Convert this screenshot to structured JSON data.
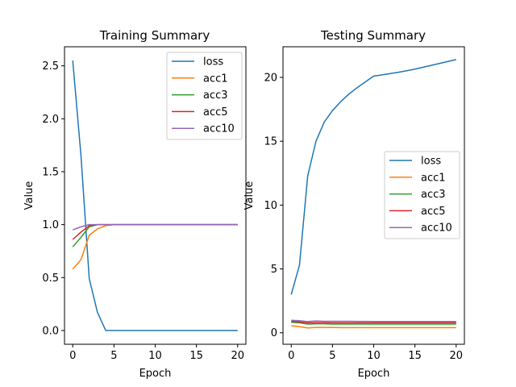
{
  "chart_data": [
    {
      "type": "line",
      "title": "Training Summary",
      "xlabel": "Epoch",
      "ylabel": "Value",
      "xlim": [
        -1,
        21
      ],
      "ylim": [
        -0.13,
        2.68
      ],
      "xticks": [
        0,
        5,
        10,
        15,
        20
      ],
      "yticks": [
        0.0,
        0.5,
        1.0,
        1.5,
        2.0,
        2.5
      ],
      "ytick_labels": [
        "0.0",
        "0.5",
        "1.0",
        "1.5",
        "2.0",
        "2.5"
      ],
      "grid": false,
      "legend_position": "top-right",
      "x": [
        0,
        1,
        2,
        3,
        4,
        5,
        6,
        7,
        8,
        9,
        10,
        11,
        12,
        13,
        14,
        15,
        16,
        17,
        18,
        19,
        20
      ],
      "series": [
        {
          "name": "loss",
          "color": "#1f77b4",
          "values": [
            2.55,
            1.65,
            0.49,
            0.17,
            0.0,
            0.0,
            0.0,
            0.0,
            0.0,
            0.0,
            0.0,
            0.0,
            0.0,
            0.0,
            0.0,
            0.0,
            0.0,
            0.0,
            0.0,
            0.0,
            0.0
          ]
        },
        {
          "name": "acc1",
          "color": "#ff7f0e",
          "values": [
            0.58,
            0.67,
            0.9,
            0.96,
            0.99,
            1.0,
            1.0,
            1.0,
            1.0,
            1.0,
            1.0,
            1.0,
            1.0,
            1.0,
            1.0,
            1.0,
            1.0,
            1.0,
            1.0,
            1.0,
            1.0
          ]
        },
        {
          "name": "acc3",
          "color": "#2ca02c",
          "values": [
            0.79,
            0.88,
            0.98,
            1.0,
            1.0,
            1.0,
            1.0,
            1.0,
            1.0,
            1.0,
            1.0,
            1.0,
            1.0,
            1.0,
            1.0,
            1.0,
            1.0,
            1.0,
            1.0,
            1.0,
            1.0
          ]
        },
        {
          "name": "acc5",
          "color": "#d62728",
          "values": [
            0.86,
            0.93,
            0.99,
            1.0,
            1.0,
            1.0,
            1.0,
            1.0,
            1.0,
            1.0,
            1.0,
            1.0,
            1.0,
            1.0,
            1.0,
            1.0,
            1.0,
            1.0,
            1.0,
            1.0,
            1.0
          ]
        },
        {
          "name": "acc10",
          "color": "#9467bd",
          "values": [
            0.95,
            0.98,
            1.0,
            1.0,
            1.0,
            1.0,
            1.0,
            1.0,
            1.0,
            1.0,
            1.0,
            1.0,
            1.0,
            1.0,
            1.0,
            1.0,
            1.0,
            1.0,
            1.0,
            1.0,
            1.0
          ]
        }
      ]
    },
    {
      "type": "line",
      "title": "Testing Summary",
      "xlabel": "Epoch",
      "ylabel": "Value",
      "xlim": [
        -1,
        21
      ],
      "ylim": [
        -0.9,
        22.4
      ],
      "xticks": [
        0,
        5,
        10,
        15,
        20
      ],
      "yticks": [
        0,
        5,
        10,
        15,
        20
      ],
      "ytick_labels": [
        "0",
        "5",
        "10",
        "15",
        "20"
      ],
      "grid": false,
      "legend_position": "center-right",
      "x": [
        0,
        1,
        2,
        3,
        4,
        5,
        6,
        7,
        8,
        9,
        10,
        11,
        12,
        13,
        14,
        15,
        16,
        17,
        18,
        19,
        20
      ],
      "series": [
        {
          "name": "loss",
          "color": "#1f77b4",
          "values": [
            3.0,
            5.3,
            12.3,
            15.0,
            16.5,
            17.4,
            18.1,
            18.7,
            19.2,
            19.65,
            20.1,
            20.2,
            20.3,
            20.4,
            20.52,
            20.65,
            20.8,
            20.95,
            21.1,
            21.25,
            21.4
          ]
        },
        {
          "name": "acc1",
          "color": "#ff7f0e",
          "values": [
            0.55,
            0.48,
            0.38,
            0.42,
            0.42,
            0.42,
            0.4,
            0.4,
            0.4,
            0.4,
            0.4,
            0.4,
            0.4,
            0.4,
            0.4,
            0.4,
            0.4,
            0.4,
            0.4,
            0.4,
            0.4
          ]
        },
        {
          "name": "acc3",
          "color": "#2ca02c",
          "values": [
            0.82,
            0.78,
            0.68,
            0.7,
            0.7,
            0.68,
            0.68,
            0.68,
            0.68,
            0.68,
            0.68,
            0.68,
            0.68,
            0.68,
            0.68,
            0.68,
            0.68,
            0.68,
            0.68,
            0.68,
            0.68
          ]
        },
        {
          "name": "acc5",
          "color": "#d62728",
          "values": [
            0.9,
            0.85,
            0.78,
            0.8,
            0.8,
            0.78,
            0.78,
            0.78,
            0.78,
            0.78,
            0.78,
            0.78,
            0.78,
            0.78,
            0.78,
            0.78,
            0.78,
            0.78,
            0.78,
            0.78,
            0.78
          ]
        },
        {
          "name": "acc10",
          "color": "#9467bd",
          "values": [
            0.98,
            0.95,
            0.88,
            0.92,
            0.9,
            0.9,
            0.9,
            0.9,
            0.89,
            0.89,
            0.88,
            0.88,
            0.88,
            0.88,
            0.88,
            0.88,
            0.88,
            0.88,
            0.88,
            0.88,
            0.88
          ]
        }
      ]
    }
  ]
}
